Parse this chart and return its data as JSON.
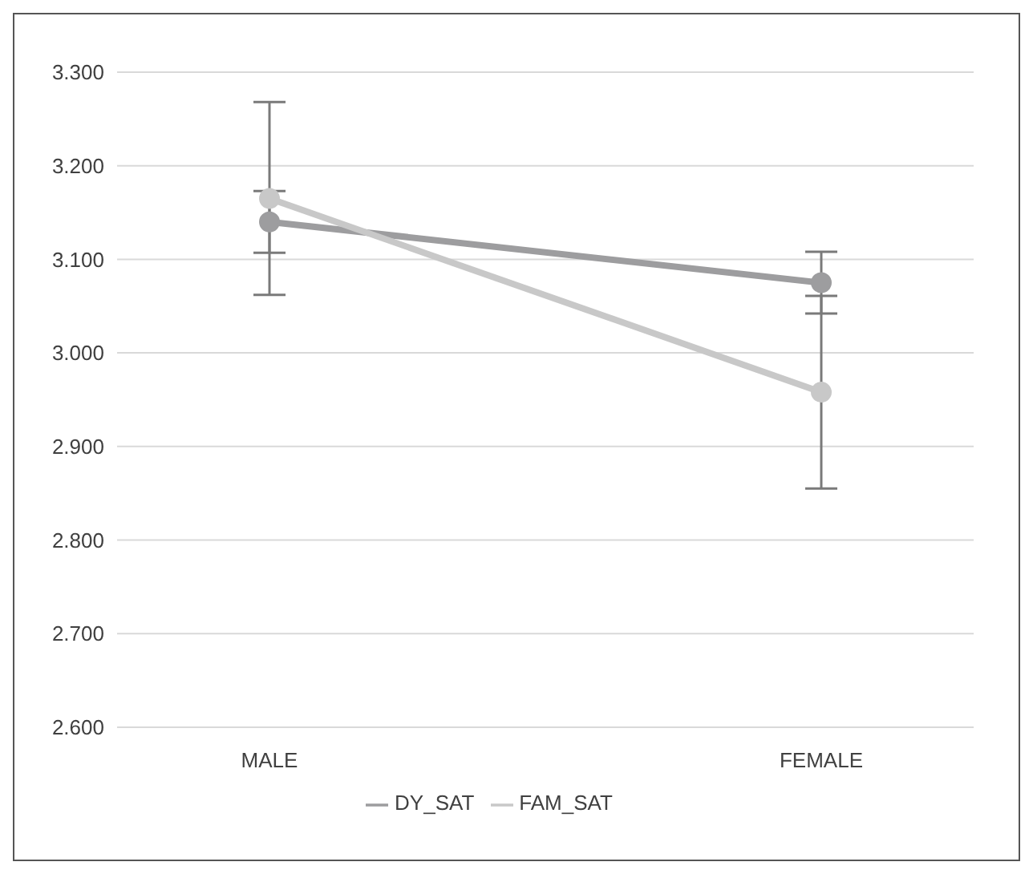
{
  "chart_data": {
    "type": "line",
    "categories": [
      "MALE",
      "FEMALE"
    ],
    "series": [
      {
        "name": "DY_SAT",
        "color": "#9d9d9f",
        "values": [
          3.14,
          3.075
        ],
        "errors": [
          0.033,
          0.033
        ]
      },
      {
        "name": "FAM_SAT",
        "color": "#c8c8c8",
        "values": [
          3.165,
          2.958
        ],
        "errors": [
          0.103,
          0.103
        ]
      }
    ],
    "ylim": [
      2.6,
      3.3
    ],
    "yticks": [
      {
        "value": 2.6,
        "label": "2.600"
      },
      {
        "value": 2.7,
        "label": "2.700"
      },
      {
        "value": 2.8,
        "label": "2.800"
      },
      {
        "value": 2.9,
        "label": "2.900"
      },
      {
        "value": 3.0,
        "label": "3.000"
      },
      {
        "value": 3.1,
        "label": "3.100"
      },
      {
        "value": 3.2,
        "label": "3.200"
      },
      {
        "value": 3.3,
        "label": "3.300"
      }
    ],
    "grid": "y",
    "legend": "bottom",
    "marker": "circle",
    "line_style": "solid"
  }
}
